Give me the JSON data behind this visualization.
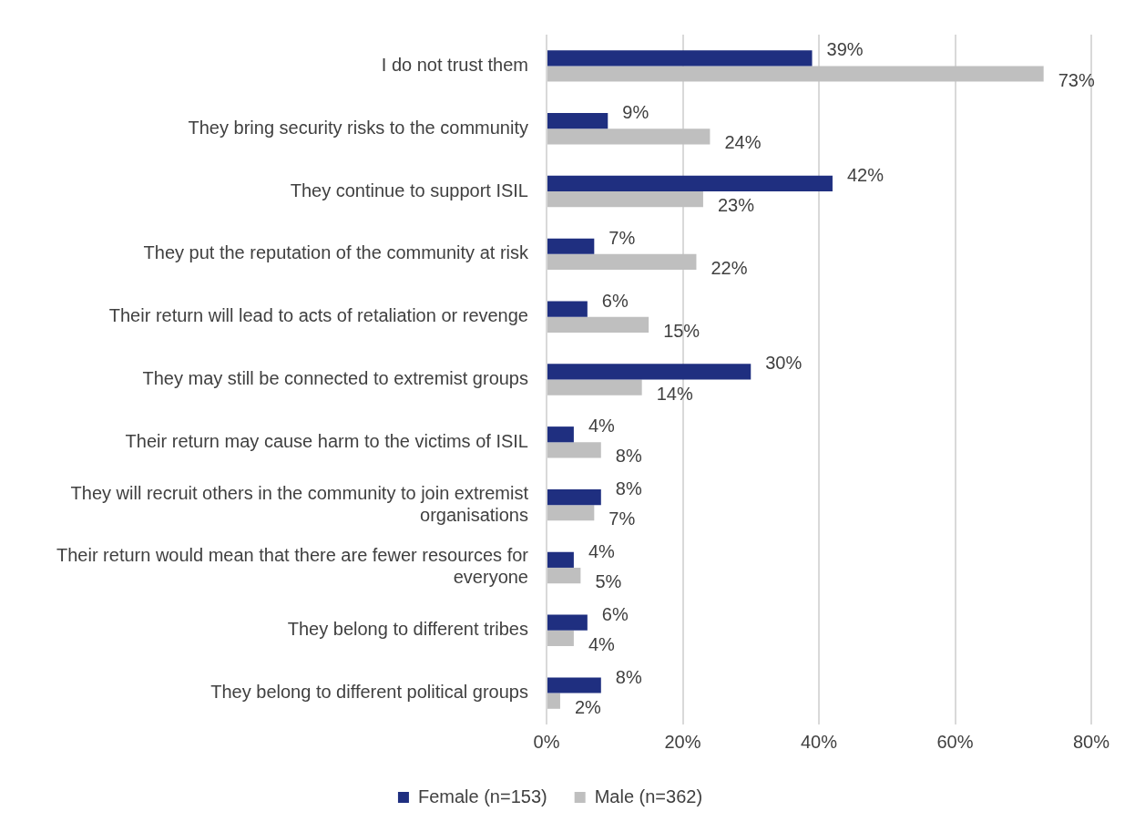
{
  "chart_data": {
    "type": "bar",
    "orientation": "horizontal",
    "categories": [
      "I do not trust them",
      "They bring security risks to the community",
      "They continue to support ISIL",
      "They put the reputation of the community at risk",
      "Their return will lead to acts of retaliation or revenge",
      "They may still be connected to extremist groups",
      "Their return may cause harm to the victims of ISIL",
      "They will recruit others in the community to join extremist organisations",
      "Their return would mean that there are fewer resources for everyone",
      "They belong to different tribes",
      "They belong to different political groups"
    ],
    "series": [
      {
        "name": "Female (n=153)",
        "color": "#1f2f80",
        "values": [
          39,
          9,
          42,
          7,
          6,
          30,
          4,
          8,
          4,
          6,
          8
        ],
        "value_labels": [
          "39%",
          "9%",
          "42%",
          "7%",
          "6%",
          "30%",
          "4%",
          "8%",
          "4%",
          "6%",
          "8%"
        ]
      },
      {
        "name": "Male (n=362)",
        "color": "#bfbfbf",
        "values": [
          73,
          24,
          23,
          22,
          15,
          14,
          8,
          7,
          5,
          4,
          2
        ],
        "value_labels": [
          "73%",
          "24%",
          "23%",
          "22%",
          "15%",
          "14%",
          "8%",
          "7%",
          "5%",
          "4%",
          "2%"
        ]
      }
    ],
    "xlim": [
      0,
      80
    ],
    "xticks": [
      {
        "value": 0,
        "label": "0%"
      },
      {
        "value": 20,
        "label": "20%"
      },
      {
        "value": 40,
        "label": "40%"
      },
      {
        "value": 60,
        "label": "60%"
      },
      {
        "value": 80,
        "label": "80%"
      }
    ],
    "grid": "x",
    "legend": "bottom"
  }
}
